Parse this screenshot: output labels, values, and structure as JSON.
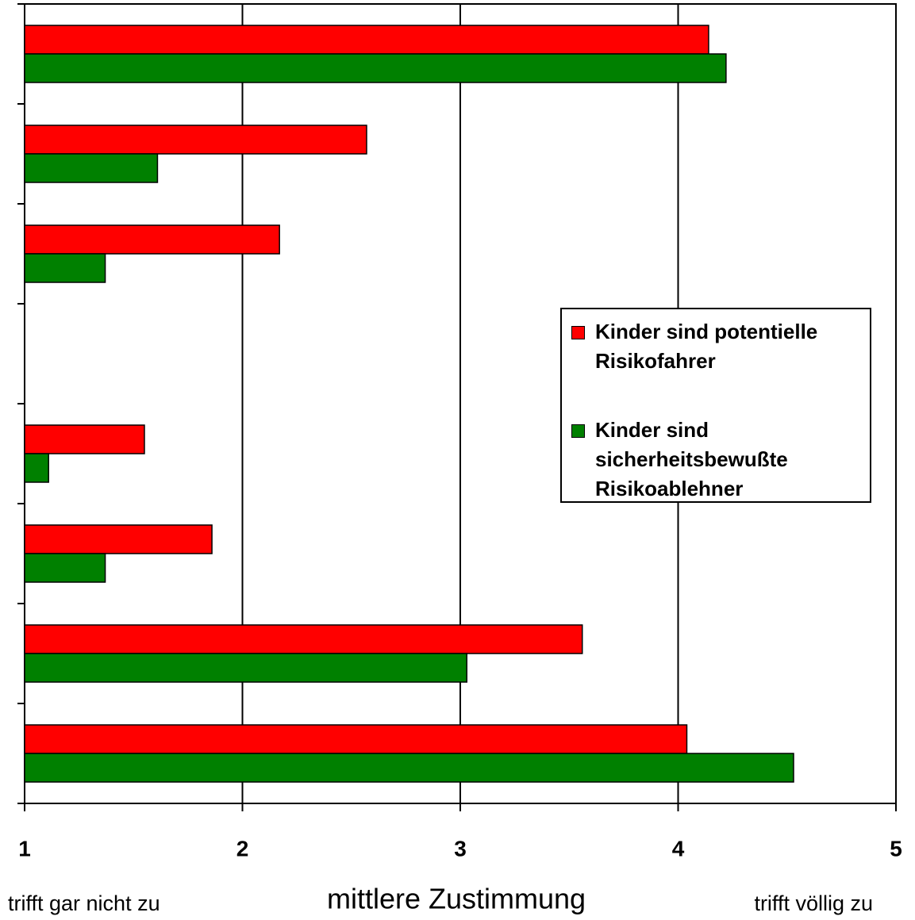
{
  "chart_data": {
    "type": "barh",
    "categories": [
      null,
      null,
      null,
      null,
      null,
      null,
      null,
      null
    ],
    "series": [
      {
        "name": "Kinder sind potentielle Risikofahrer",
        "color": "#ff0000",
        "values": [
          4.14,
          2.57,
          2.17,
          null,
          1.55,
          1.86,
          3.56,
          4.04
        ]
      },
      {
        "name": "Kinder sind sicherheitsbewußte Risikoablehner",
        "color": "#008000",
        "values": [
          4.22,
          1.61,
          1.37,
          null,
          1.11,
          1.37,
          3.03,
          4.53
        ]
      }
    ],
    "xlim": [
      1,
      5
    ],
    "xticks": [
      1,
      2,
      3,
      4,
      5
    ],
    "xlabel": "mittlere Zustimmung",
    "annotations": [
      "trifft gar nicht zu",
      "trifft völlig zu"
    ],
    "grid": true,
    "legend": "right"
  }
}
